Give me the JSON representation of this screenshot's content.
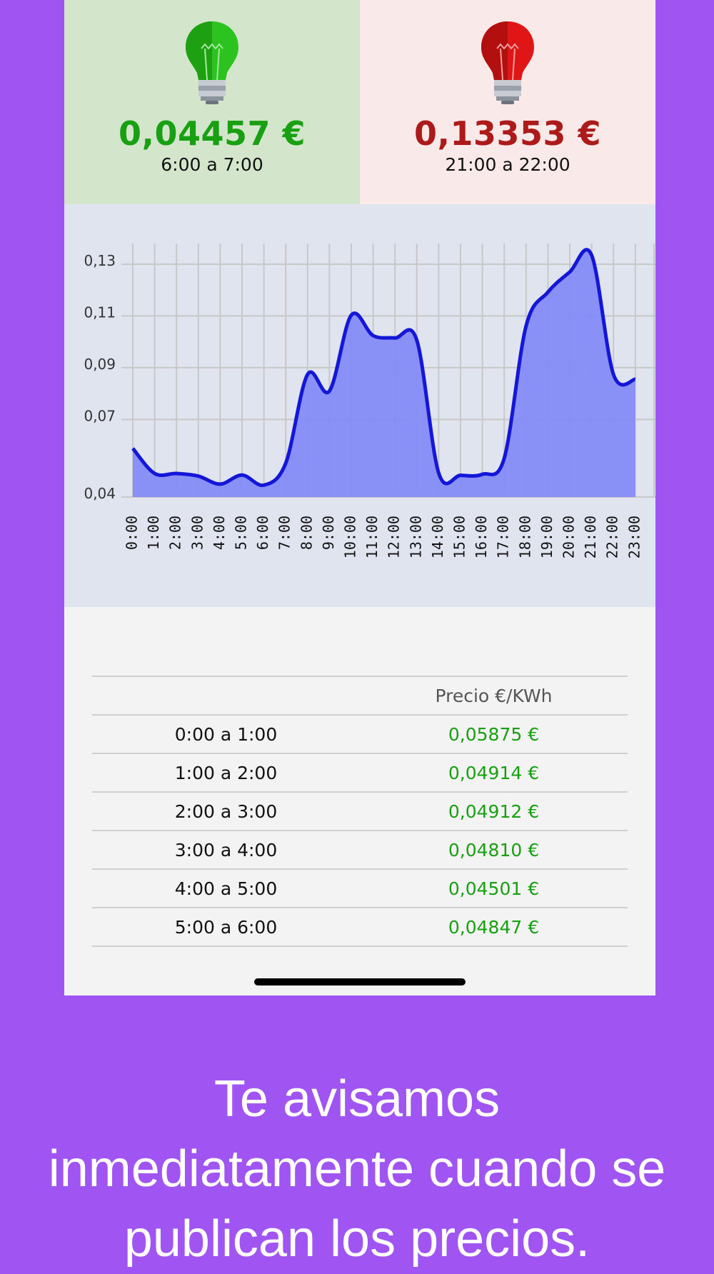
{
  "min_card": {
    "price": "0,04457 €",
    "hours": "6:00 a 7:00",
    "color": "#18a012",
    "icon": "lightbulb-green-icon"
  },
  "max_card": {
    "price": "0,13353 €",
    "hours": "21:00 a 22:00",
    "color": "#ad1a1a",
    "icon": "lightbulb-red-icon"
  },
  "chart_data": {
    "type": "area",
    "x": [
      "0:00",
      "1:00",
      "2:00",
      "3:00",
      "4:00",
      "5:00",
      "6:00",
      "7:00",
      "8:00",
      "9:00",
      "10:00",
      "11:00",
      "12:00",
      "13:00",
      "14:00",
      "15:00",
      "16:00",
      "17:00",
      "18:00",
      "19:00",
      "20:00",
      "21:00",
      "22:00",
      "23:00"
    ],
    "values": [
      0.0588,
      0.0491,
      0.0491,
      0.0481,
      0.045,
      0.0485,
      0.0446,
      0.0531,
      0.0874,
      0.081,
      0.1103,
      0.1024,
      0.1015,
      0.1006,
      0.0493,
      0.0484,
      0.0488,
      0.055,
      0.1061,
      0.1192,
      0.127,
      0.1335,
      0.0874,
      0.0855
    ],
    "ytick_labels": [
      "0,04",
      "0,07",
      "0,09",
      "0,11",
      "0,13"
    ],
    "ytick_values": [
      0.04,
      0.07,
      0.09,
      0.11,
      0.13
    ],
    "ylim": [
      0.04,
      0.138
    ],
    "grid": true,
    "line_color": "#1416d8",
    "fill_color": "#858cf5"
  },
  "table": {
    "header": {
      "hours": "",
      "price": "Precio €/KWh"
    },
    "rows": [
      {
        "hours": "0:00 a 1:00",
        "price": "0,05875 €"
      },
      {
        "hours": "1:00 a 2:00",
        "price": "0,04914 €"
      },
      {
        "hours": "2:00 a 3:00",
        "price": "0,04912 €"
      },
      {
        "hours": "3:00 a 4:00",
        "price": "0,04810 €"
      },
      {
        "hours": "4:00 a 5:00",
        "price": "0,04501 €"
      },
      {
        "hours": "5:00 a 6:00",
        "price": "0,04847 €"
      }
    ]
  },
  "caption": {
    "line1": "Te avisamos",
    "line2": "inmediatamente cuando se",
    "line3": "publican los precios."
  }
}
